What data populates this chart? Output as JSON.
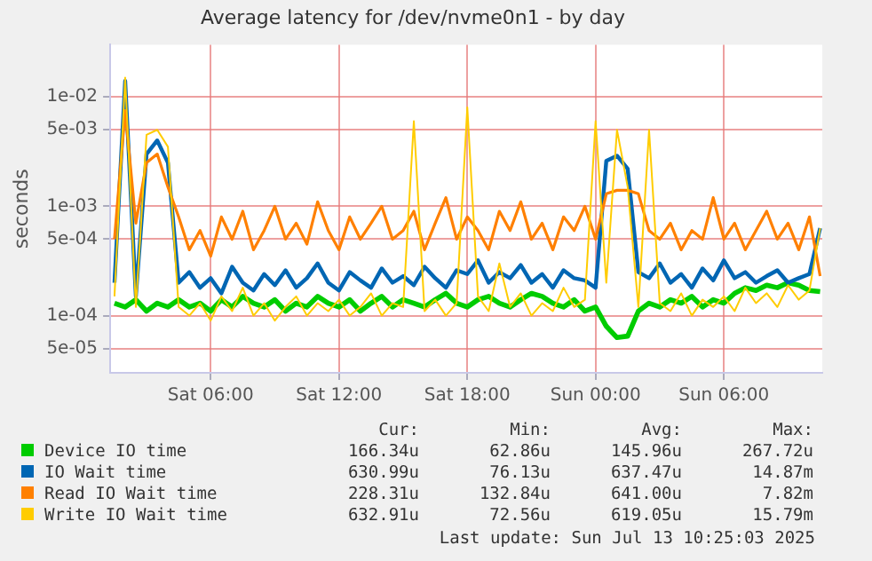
{
  "chart_data": {
    "type": "line",
    "title": "Average latency for /dev/nvme0n1 - by day",
    "ylabel": "seconds",
    "log": "y",
    "grid": true,
    "legend": "bottom",
    "marker": "none",
    "line_style": "solid",
    "x": [
      "2025-07-12T01:30",
      "2025-07-12T02:00",
      "2025-07-12T02:30",
      "2025-07-12T03:00",
      "2025-07-12T03:30",
      "2025-07-12T04:00",
      "2025-07-12T04:30",
      "2025-07-12T05:00",
      "2025-07-12T05:30",
      "2025-07-12T06:00",
      "2025-07-12T06:30",
      "2025-07-12T07:00",
      "2025-07-12T07:30",
      "2025-07-12T08:00",
      "2025-07-12T08:30",
      "2025-07-12T09:00",
      "2025-07-12T09:30",
      "2025-07-12T10:00",
      "2025-07-12T10:30",
      "2025-07-12T11:00",
      "2025-07-12T11:30",
      "2025-07-12T12:00",
      "2025-07-12T12:30",
      "2025-07-12T13:00",
      "2025-07-12T13:30",
      "2025-07-12T14:00",
      "2025-07-12T14:30",
      "2025-07-12T15:00",
      "2025-07-12T15:30",
      "2025-07-12T16:00",
      "2025-07-12T16:30",
      "2025-07-12T17:00",
      "2025-07-12T17:30",
      "2025-07-12T18:00",
      "2025-07-12T18:30",
      "2025-07-12T19:00",
      "2025-07-12T19:30",
      "2025-07-12T20:00",
      "2025-07-12T20:30",
      "2025-07-12T21:00",
      "2025-07-12T21:30",
      "2025-07-12T22:00",
      "2025-07-12T22:30",
      "2025-07-12T23:00",
      "2025-07-12T23:30",
      "2025-07-13T00:00",
      "2025-07-13T00:30",
      "2025-07-13T01:00",
      "2025-07-13T01:30",
      "2025-07-13T02:00",
      "2025-07-13T02:30",
      "2025-07-13T03:00",
      "2025-07-13T03:30",
      "2025-07-13T04:00",
      "2025-07-13T04:30",
      "2025-07-13T05:00",
      "2025-07-13T05:30",
      "2025-07-13T06:00",
      "2025-07-13T06:30",
      "2025-07-13T07:00",
      "2025-07-13T07:30",
      "2025-07-13T08:00",
      "2025-07-13T08:30",
      "2025-07-13T09:00",
      "2025-07-13T09:30",
      "2025-07-13T10:00",
      "2025-07-13T10:30"
    ],
    "xlim": [
      "2025-07-12T01:18",
      "2025-07-13T10:36"
    ],
    "xticks": [
      {
        "value": "2025-07-12T06:00",
        "label": "Sat 06:00"
      },
      {
        "value": "2025-07-12T12:00",
        "label": "Sat 12:00"
      },
      {
        "value": "2025-07-12T18:00",
        "label": "Sat 18:00"
      },
      {
        "value": "2025-07-13T00:00",
        "label": "Sun 00:00"
      },
      {
        "value": "2025-07-13T06:00",
        "label": "Sun 06:00"
      }
    ],
    "ylim": [
      3e-05,
      0.03
    ],
    "yticks": [
      {
        "value": 5e-05,
        "label": "5e-05"
      },
      {
        "value": 0.0001,
        "label": "1e-04"
      },
      {
        "value": 0.0005,
        "label": "5e-04"
      },
      {
        "value": 0.001,
        "label": "1e-03"
      },
      {
        "value": 0.005,
        "label": "5e-03"
      },
      {
        "value": 0.01,
        "label": "1e-02"
      }
    ],
    "series": [
      {
        "name": "Device IO time",
        "color": "#00cc00",
        "values": [
          0.00013,
          0.00012,
          0.00014,
          0.00011,
          0.00013,
          0.00012,
          0.00014,
          0.00012,
          0.00013,
          0.00011,
          0.00014,
          0.00012,
          0.00015,
          0.00013,
          0.00012,
          0.00014,
          0.00011,
          0.00013,
          0.00012,
          0.00015,
          0.00013,
          0.00012,
          0.00014,
          0.00011,
          0.00013,
          0.00015,
          0.00012,
          0.00014,
          0.00013,
          0.00012,
          0.00014,
          0.00016,
          0.00013,
          0.00012,
          0.00014,
          0.00015,
          0.00013,
          0.00012,
          0.00014,
          0.00016,
          0.00015,
          0.00013,
          0.00012,
          0.00014,
          0.00011,
          0.00012,
          8e-05,
          6.3e-05,
          6.5e-05,
          0.00011,
          0.00013,
          0.00012,
          0.00014,
          0.00013,
          0.00015,
          0.00012,
          0.00014,
          0.00013,
          0.00016,
          0.00018,
          0.00017,
          0.00019,
          0.00018,
          0.0002,
          0.00019,
          0.00017,
          0.000166
        ]
      },
      {
        "name": "IO Wait time",
        "color": "#0066b3",
        "values": [
          0.0002,
          0.014,
          0.00015,
          0.003,
          0.004,
          0.0025,
          0.0002,
          0.00025,
          0.00018,
          0.00022,
          0.00016,
          0.00028,
          0.0002,
          0.00017,
          0.00024,
          0.00019,
          0.00026,
          0.00018,
          0.00022,
          0.0003,
          0.0002,
          0.00017,
          0.00025,
          0.00021,
          0.00018,
          0.00027,
          0.0002,
          0.00023,
          0.00019,
          0.00028,
          0.00022,
          0.00018,
          0.00026,
          0.00024,
          0.00032,
          0.0002,
          0.00025,
          0.00022,
          0.00029,
          0.0002,
          0.00024,
          0.00018,
          0.00026,
          0.00022,
          0.00021,
          0.00018,
          0.0026,
          0.0029,
          0.0022,
          0.00025,
          0.00022,
          0.0003,
          0.0002,
          0.00024,
          0.00018,
          0.00027,
          0.00021,
          0.00032,
          0.00022,
          0.00025,
          0.0002,
          0.00023,
          0.00026,
          0.0002,
          0.00022,
          0.00024,
          0.00063
        ]
      },
      {
        "name": "Read IO Wait time",
        "color": "#ff8000",
        "values": [
          0.0005,
          0.0075,
          0.0007,
          0.0025,
          0.003,
          0.0015,
          0.0008,
          0.0004,
          0.0006,
          0.00035,
          0.0008,
          0.0005,
          0.0009,
          0.0004,
          0.0006,
          0.001,
          0.0005,
          0.0007,
          0.00045,
          0.0011,
          0.0006,
          0.0004,
          0.0008,
          0.0005,
          0.0007,
          0.001,
          0.0005,
          0.0006,
          0.0009,
          0.0004,
          0.0007,
          0.0012,
          0.0005,
          0.0008,
          0.0006,
          0.0004,
          0.0009,
          0.0006,
          0.0011,
          0.0005,
          0.0007,
          0.0004,
          0.0008,
          0.0006,
          0.001,
          0.0005,
          0.0013,
          0.0014,
          0.0014,
          0.0013,
          0.0006,
          0.0005,
          0.0007,
          0.0004,
          0.0006,
          0.0005,
          0.0012,
          0.0005,
          0.0007,
          0.0004,
          0.0006,
          0.0009,
          0.0005,
          0.0007,
          0.0004,
          0.0008,
          0.00023
        ]
      },
      {
        "name": "Write IO Wait time",
        "color": "#ffcc00",
        "values": [
          0.00015,
          0.015,
          0.00012,
          0.0045,
          0.005,
          0.0035,
          0.00012,
          0.0001,
          0.00013,
          9e-05,
          0.00015,
          0.00011,
          0.00018,
          0.0001,
          0.00013,
          9e-05,
          0.00012,
          0.00015,
          0.0001,
          0.00013,
          0.00011,
          0.00014,
          0.0001,
          0.00012,
          0.00016,
          0.0001,
          0.00013,
          0.00012,
          0.006,
          0.00011,
          0.00014,
          0.0001,
          0.00013,
          0.008,
          0.00015,
          0.00011,
          0.0003,
          0.00012,
          0.00016,
          0.0001,
          0.00013,
          0.00011,
          0.00018,
          0.00012,
          0.00014,
          0.006,
          0.0002,
          0.005,
          0.0015,
          0.00012,
          0.005,
          0.00013,
          0.00011,
          0.00016,
          0.0001,
          0.00014,
          0.00012,
          0.00015,
          0.00011,
          0.00018,
          0.00013,
          0.00016,
          0.00012,
          0.00019,
          0.00014,
          0.00017,
          0.00063
        ]
      }
    ],
    "annotations": [
      "Cur:",
      "Min:",
      "Avg:",
      "Max:",
      "166.34u",
      "62.86u",
      "145.96u",
      "267.72u",
      "630.99u",
      "76.13u",
      "637.47u",
      "14.87m",
      "228.31u",
      "132.84u",
      "641.00u",
      "7.82m",
      "632.91u",
      "72.56u",
      "619.05u",
      "15.79m",
      "Last update: Sun Jul 13 10:25:03 2025"
    ]
  }
}
